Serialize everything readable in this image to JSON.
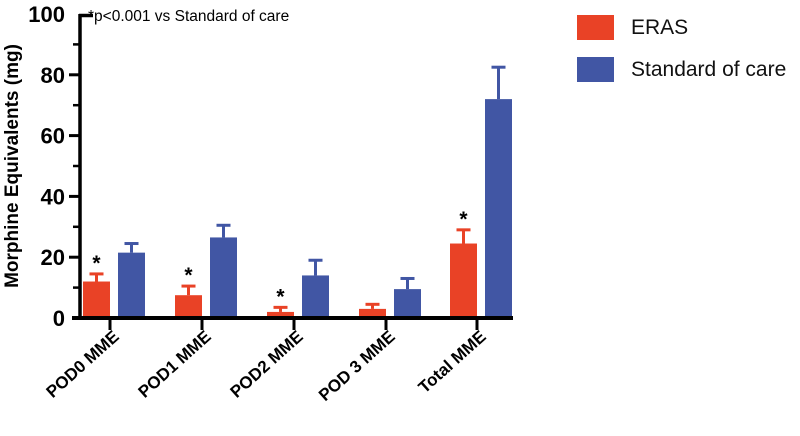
{
  "chart_data": {
    "type": "bar",
    "title": "",
    "ylabel": "Morphine Equivalents (mg)",
    "xlabel": "",
    "ylim": [
      0,
      100
    ],
    "yticks": [
      0,
      20,
      40,
      60,
      80,
      100
    ],
    "minor_tick_step": 10,
    "grid": false,
    "legend_position": "top-right",
    "annotation": "*p<0.001 vs Standard of care",
    "significance_marker": "*",
    "categories": [
      "POD0 MME",
      "POD1 MME",
      "POD2 MME",
      "POD 3 MME",
      "Total MME"
    ],
    "series": [
      {
        "name": "ERAS",
        "color": "#E94226",
        "values": [
          12,
          7.5,
          2,
          3,
          24.5
        ],
        "errors": [
          2.5,
          3,
          1.5,
          1.5,
          4.5
        ],
        "significant": [
          true,
          true,
          true,
          false,
          true
        ]
      },
      {
        "name": "Standard of care",
        "color": "#4156A4",
        "values": [
          21.5,
          26.5,
          14,
          9.5,
          72
        ],
        "errors": [
          3,
          4,
          5,
          3.5,
          10.5
        ],
        "significant": [
          false,
          false,
          false,
          false,
          false
        ]
      }
    ],
    "axis_color": "#000000",
    "text_color": "#000000"
  }
}
